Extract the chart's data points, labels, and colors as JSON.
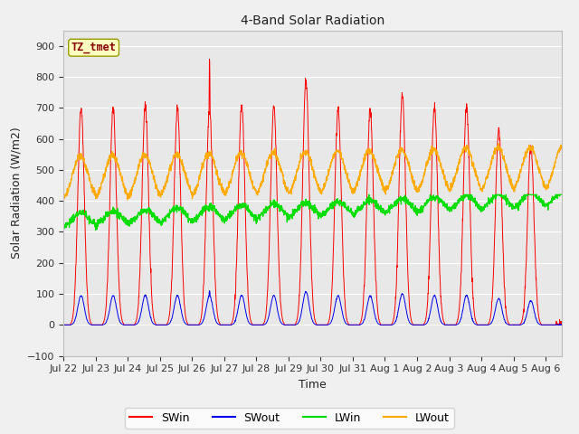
{
  "title": "4-Band Solar Radiation",
  "xlabel": "Time",
  "ylabel": "Solar Radiation (W/m2)",
  "ylim": [
    -100,
    950
  ],
  "yticks": [
    -100,
    0,
    100,
    200,
    300,
    400,
    500,
    600,
    700,
    800,
    900
  ],
  "fig_facecolor": "#f0f0f0",
  "plot_facecolor": "#e8e8e8",
  "label_box_text": "TZ_tmet",
  "label_box_color": "#ffffc0",
  "label_box_edge_color": "#999900",
  "label_text_color": "#880000",
  "colors": {
    "SWin": "#ff0000",
    "SWout": "#0000ee",
    "LWin": "#00dd00",
    "LWout": "#ffaa00"
  },
  "x_tick_labels": [
    "Jul 22",
    "Jul 23",
    "Jul 24",
    "Jul 25",
    "Jul 26",
    "Jul 27",
    "Jul 28",
    "Jul 29",
    "Jul 30",
    "Jul 31",
    "Aug 1",
    "Aug 2",
    "Aug 3",
    "Aug 4",
    "Aug 5",
    "Aug 6"
  ],
  "n_days": 15.5,
  "samples_per_day": 144
}
